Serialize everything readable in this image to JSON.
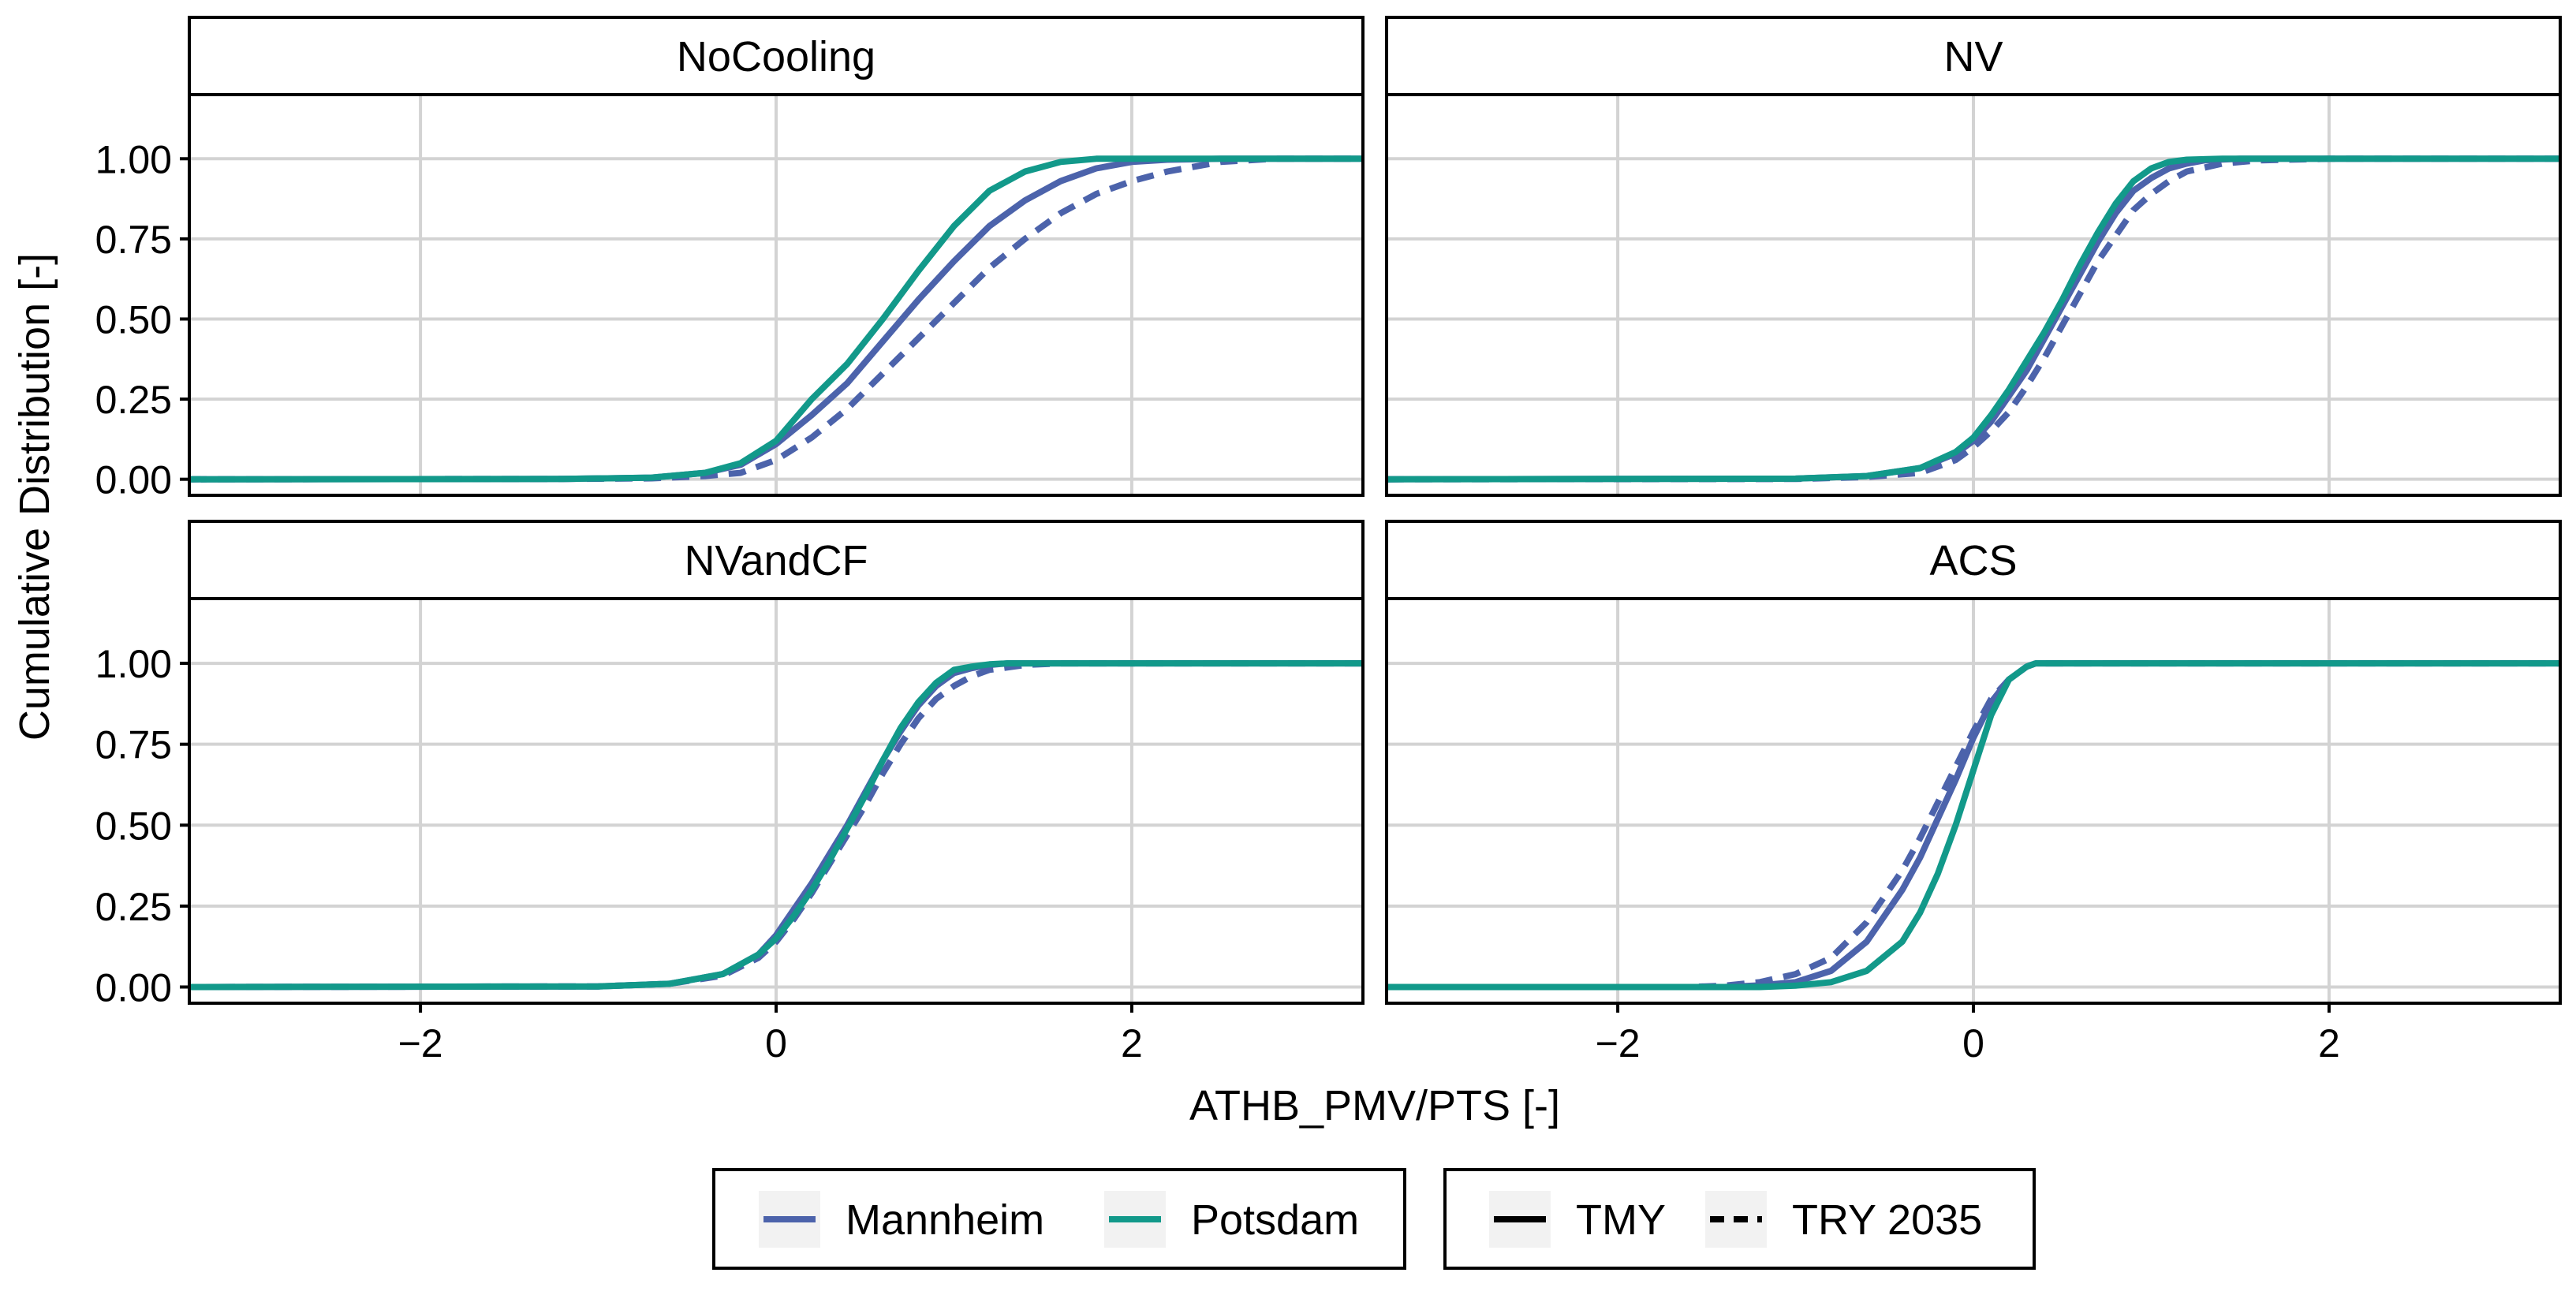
{
  "figure": {
    "ylabel": "Cumulative Distribution [-]",
    "xlabel": "ATHB_PMV/PTS [-]"
  },
  "colors": {
    "Mannheim": "#4C63AB",
    "Potsdam": "#12998A",
    "grid": "#D3D3D3",
    "strip_fill": "#FFFFFF",
    "border": "#000000"
  },
  "legend": {
    "city_items": [
      {
        "label": "Mannheim",
        "color": "#4C63AB"
      },
      {
        "label": "Potsdam",
        "color": "#12998A"
      }
    ],
    "linetype_items": [
      {
        "label": "TMY",
        "dash": "solid"
      },
      {
        "label": "TRY 2035",
        "dash": "dashed"
      }
    ]
  },
  "chart_data": {
    "type": "line",
    "facet_layout": "2x2",
    "xlim": [
      -3.3,
      3.3
    ],
    "ylim": [
      -0.05,
      1.2
    ],
    "x_ticks": [
      -2,
      0,
      2
    ],
    "x_tick_labels": [
      "−2",
      "0",
      "2"
    ],
    "y_ticks": [
      0,
      0.25,
      0.5,
      0.75,
      1.0
    ],
    "y_tick_labels": [
      "0.00",
      "0.25",
      "0.50",
      "0.75",
      "1.00"
    ],
    "grid": true,
    "legend_position": "bottom",
    "panels": [
      {
        "title": "NoCooling",
        "series": [
          {
            "city": "Mannheim",
            "period": "TMY",
            "x": [
              -3.3,
              -1.2,
              -0.7,
              -0.4,
              -0.2,
              0,
              0.2,
              0.4,
              0.6,
              0.8,
              1.0,
              1.2,
              1.4,
              1.6,
              1.8,
              2.0,
              2.2,
              2.5,
              3.3
            ],
            "y": [
              0,
              0.001,
              0.005,
              0.02,
              0.045,
              0.11,
              0.2,
              0.3,
              0.43,
              0.56,
              0.68,
              0.79,
              0.87,
              0.93,
              0.97,
              0.99,
              0.997,
              1.0,
              1.0
            ]
          },
          {
            "city": "Mannheim",
            "period": "TRY 2035",
            "x": [
              -3.3,
              -1.2,
              -0.7,
              -0.4,
              -0.2,
              0,
              0.2,
              0.4,
              0.6,
              0.8,
              1.0,
              1.2,
              1.4,
              1.6,
              1.8,
              2.0,
              2.2,
              2.5,
              2.8,
              3.3
            ],
            "y": [
              0,
              0.001,
              0.003,
              0.01,
              0.02,
              0.06,
              0.13,
              0.22,
              0.33,
              0.44,
              0.55,
              0.66,
              0.75,
              0.83,
              0.89,
              0.93,
              0.96,
              0.99,
              1.0,
              1.0
            ]
          },
          {
            "city": "Potsdam",
            "period": "TMY",
            "x": [
              -3.3,
              -1.2,
              -0.7,
              -0.4,
              -0.2,
              0,
              0.2,
              0.4,
              0.6,
              0.8,
              1.0,
              1.2,
              1.4,
              1.6,
              1.8,
              2.0,
              3.3
            ],
            "y": [
              0,
              0.001,
              0.005,
              0.02,
              0.05,
              0.12,
              0.25,
              0.36,
              0.5,
              0.65,
              0.79,
              0.9,
              0.96,
              0.99,
              1.0,
              1.0,
              1.0
            ]
          }
        ]
      },
      {
        "title": "NV",
        "series": [
          {
            "city": "Mannheim",
            "period": "TMY",
            "x": [
              -3.3,
              -1.0,
              -0.6,
              -0.3,
              -0.1,
              0,
              0.1,
              0.2,
              0.3,
              0.4,
              0.5,
              0.6,
              0.7,
              0.8,
              0.9,
              1.0,
              1.1,
              1.2,
              1.3,
              1.5,
              1.8,
              3.3
            ],
            "y": [
              0,
              0.002,
              0.01,
              0.035,
              0.08,
              0.12,
              0.18,
              0.26,
              0.34,
              0.44,
              0.54,
              0.64,
              0.74,
              0.83,
              0.9,
              0.94,
              0.97,
              0.985,
              0.995,
              1.0,
              1.0,
              1.0
            ]
          },
          {
            "city": "Mannheim",
            "period": "TRY 2035",
            "x": [
              -3.3,
              -1.0,
              -0.6,
              -0.3,
              -0.1,
              0,
              0.1,
              0.2,
              0.3,
              0.4,
              0.5,
              0.6,
              0.7,
              0.8,
              0.9,
              1.0,
              1.1,
              1.2,
              1.4,
              1.6,
              2.0,
              3.3
            ],
            "y": [
              0,
              0.001,
              0.007,
              0.02,
              0.06,
              0.1,
              0.15,
              0.21,
              0.29,
              0.38,
              0.48,
              0.58,
              0.68,
              0.76,
              0.84,
              0.89,
              0.93,
              0.96,
              0.985,
              0.995,
              1.0,
              1.0
            ]
          },
          {
            "city": "Potsdam",
            "period": "TMY",
            "x": [
              -3.3,
              -1.0,
              -0.6,
              -0.3,
              -0.1,
              0,
              0.1,
              0.2,
              0.3,
              0.4,
              0.5,
              0.6,
              0.7,
              0.8,
              0.9,
              1.0,
              1.1,
              1.2,
              1.4,
              3.3
            ],
            "y": [
              0,
              0.002,
              0.01,
              0.035,
              0.085,
              0.13,
              0.2,
              0.28,
              0.37,
              0.46,
              0.56,
              0.67,
              0.77,
              0.86,
              0.93,
              0.97,
              0.99,
              0.997,
              1.0,
              1.0
            ]
          }
        ]
      },
      {
        "title": "NVandCF",
        "series": [
          {
            "city": "Mannheim",
            "period": "TMY",
            "x": [
              -3.3,
              -1.0,
              -0.6,
              -0.3,
              -0.1,
              0,
              0.1,
              0.2,
              0.3,
              0.4,
              0.5,
              0.6,
              0.7,
              0.8,
              0.9,
              1.0,
              1.1,
              1.2,
              1.3,
              1.5,
              1.8,
              3.3
            ],
            "y": [
              0,
              0.002,
              0.01,
              0.04,
              0.1,
              0.16,
              0.24,
              0.32,
              0.41,
              0.5,
              0.6,
              0.7,
              0.79,
              0.87,
              0.93,
              0.97,
              0.985,
              0.995,
              1.0,
              1.0,
              1.0,
              1.0
            ]
          },
          {
            "city": "Mannheim",
            "period": "TRY 2035",
            "x": [
              -3.3,
              -1.0,
              -0.6,
              -0.3,
              -0.1,
              0,
              0.1,
              0.2,
              0.3,
              0.4,
              0.5,
              0.6,
              0.7,
              0.8,
              0.9,
              1.0,
              1.1,
              1.2,
              1.4,
              1.6,
              1.9,
              3.3
            ],
            "y": [
              0,
              0.002,
              0.01,
              0.035,
              0.09,
              0.14,
              0.21,
              0.29,
              0.38,
              0.47,
              0.56,
              0.66,
              0.75,
              0.83,
              0.89,
              0.93,
              0.96,
              0.98,
              0.995,
              1.0,
              1.0,
              1.0
            ]
          },
          {
            "city": "Potsdam",
            "period": "TMY",
            "x": [
              -3.3,
              -1.0,
              -0.6,
              -0.3,
              -0.1,
              0,
              0.1,
              0.2,
              0.3,
              0.4,
              0.5,
              0.6,
              0.7,
              0.8,
              0.9,
              1.0,
              1.1,
              1.2,
              1.3,
              1.5,
              3.3
            ],
            "y": [
              0,
              0.002,
              0.01,
              0.04,
              0.1,
              0.15,
              0.22,
              0.3,
              0.39,
              0.49,
              0.59,
              0.7,
              0.8,
              0.88,
              0.94,
              0.98,
              0.99,
              0.997,
              1.0,
              1.0,
              1.0
            ]
          }
        ]
      },
      {
        "title": "ACS",
        "series": [
          {
            "city": "Mannheim",
            "period": "TMY",
            "x": [
              -3.3,
              -1.4,
              -1.2,
              -1.0,
              -0.8,
              -0.6,
              -0.4,
              -0.3,
              -0.2,
              -0.1,
              0,
              0.1,
              0.2,
              0.3,
              0.35,
              3.3
            ],
            "y": [
              0,
              0.0,
              0.005,
              0.015,
              0.05,
              0.14,
              0.3,
              0.4,
              0.52,
              0.64,
              0.77,
              0.88,
              0.95,
              0.99,
              1.0,
              1.0
            ]
          },
          {
            "city": "Mannheim",
            "period": "TRY 2035",
            "x": [
              -3.3,
              -1.6,
              -1.4,
              -1.2,
              -1.0,
              -0.8,
              -0.6,
              -0.4,
              -0.3,
              -0.2,
              -0.1,
              0,
              0.1,
              0.2,
              0.3,
              0.35,
              3.3
            ],
            "y": [
              0,
              0.0,
              0.004,
              0.015,
              0.04,
              0.09,
              0.2,
              0.36,
              0.46,
              0.57,
              0.68,
              0.79,
              0.89,
              0.95,
              0.99,
              1.0,
              1.0
            ]
          },
          {
            "city": "Potsdam",
            "period": "TMY",
            "x": [
              -3.3,
              -1.2,
              -1.0,
              -0.8,
              -0.6,
              -0.4,
              -0.3,
              -0.2,
              -0.1,
              0,
              0.1,
              0.2,
              0.3,
              0.35,
              3.3
            ],
            "y": [
              0,
              0.0,
              0.004,
              0.015,
              0.05,
              0.14,
              0.23,
              0.35,
              0.5,
              0.67,
              0.84,
              0.95,
              0.99,
              1.0,
              1.0
            ]
          }
        ]
      }
    ]
  }
}
